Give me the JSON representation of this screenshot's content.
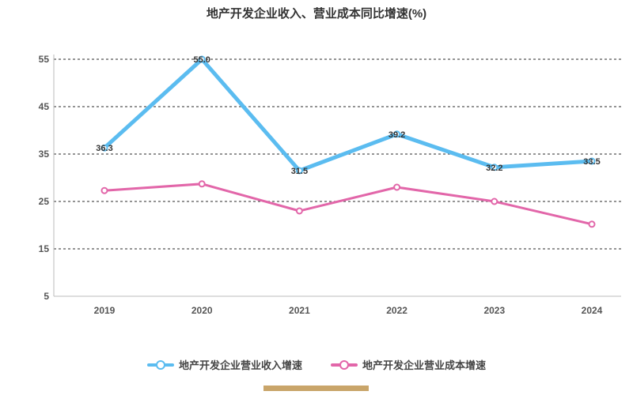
{
  "chart_data": {
    "type": "line",
    "title": "地产开发企业收入、营业成本同比增速(%)",
    "categories": [
      "2019",
      "2020",
      "2021",
      "2022",
      "2023",
      "2024"
    ],
    "ylim": [
      5,
      55
    ],
    "yticks": [
      5,
      15,
      25,
      35,
      45,
      55
    ],
    "grid": true,
    "legend_position": "bottom",
    "series": [
      {
        "name": "地产开发企业营业收入增速",
        "color": "#5bbcf0",
        "values": [
          36.3,
          55.0,
          31.5,
          39.2,
          32.2,
          33.5
        ],
        "labels": [
          "36.3",
          "55.0",
          "31.5",
          "39.2",
          "32.2",
          "33.5"
        ]
      },
      {
        "name": "地产开发企业营业成本增速",
        "color": "#e266a9",
        "values": [
          27.3,
          28.7,
          23.0,
          28.0,
          25.0,
          20.2
        ],
        "labels": []
      }
    ]
  }
}
